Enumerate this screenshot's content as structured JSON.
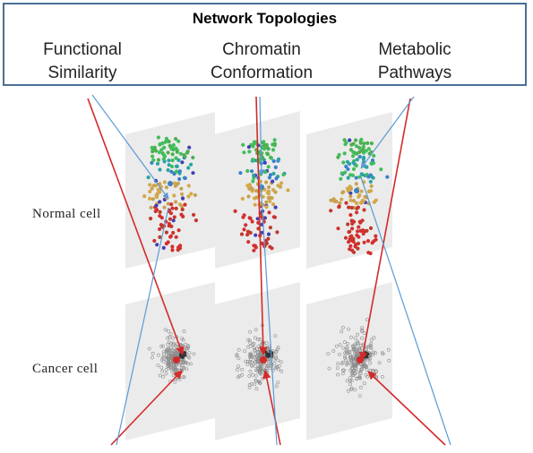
{
  "header": {
    "title": "Network Topologies",
    "columns": [
      {
        "line1": "Functional",
        "line2": "Similarity"
      },
      {
        "line1": "Chromatin",
        "line2": "Conformation"
      },
      {
        "line1": "Metabolic",
        "line2": "Pathways"
      }
    ]
  },
  "rows": {
    "normal": "Normal cell",
    "cancer": "Cancer cell"
  },
  "colors": {
    "border": "#4a6f96",
    "red_arrow": "#d42a2a",
    "blue_arrow": "#5b9bd5",
    "panel": "#e8e8e8",
    "node_gray": "#8c8c8c"
  },
  "node_palette": [
    "#d32f2f",
    "#c0392b",
    "#c8a050",
    "#d4a847",
    "#3fbf5a",
    "#4caf50",
    "#2ba3a3",
    "#3b7fc9",
    "#3f3fb5"
  ]
}
